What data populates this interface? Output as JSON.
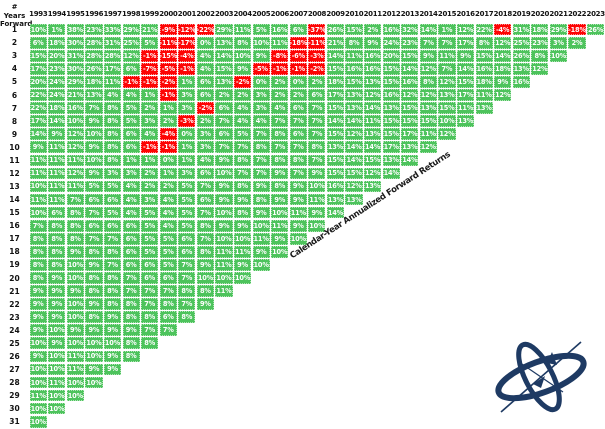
{
  "corner_label": {
    "line1": "# Years",
    "line2": "Forward"
  },
  "diagonal_label": "Calendar-Year Annualized Forward Returns",
  "logo_icon": "gyroscope-orbit-logo",
  "colors": {
    "positive_cell": "#4dc35c",
    "negative_cell": "#fd0404",
    "cell_text": "#ffffff",
    "header_text": "#111111",
    "logo_navy": "#1e3a63"
  },
  "chart_data": {
    "type": "heatmap",
    "title": "Calendar-Year Annualized Forward Returns",
    "unit": "percent, annualized",
    "x_axis": "start year",
    "y_axis": "# Years Forward",
    "color_rule": "value >= 0 green, value < 0 red",
    "columns": [
      1993,
      1994,
      1995,
      1996,
      1997,
      1998,
      1999,
      2000,
      2001,
      2002,
      2003,
      2004,
      2005,
      2006,
      2007,
      2008,
      2009,
      2010,
      2011,
      2012,
      2013,
      2014,
      2015,
      2016,
      2017,
      2018,
      2019,
      2020,
      2021,
      2022,
      2023
    ],
    "rows": [
      {
        "years_forward": 1,
        "values": [
          10,
          1,
          38,
          23,
          33,
          29,
          21,
          -9,
          -12,
          -22,
          29,
          11,
          5,
          16,
          6,
          -37,
          26,
          15,
          2,
          16,
          32,
          14,
          1,
          12,
          22,
          -4,
          31,
          18,
          29,
          -18,
          26
        ]
      },
      {
        "years_forward": 2,
        "values": [
          6,
          18,
          30,
          28,
          31,
          25,
          5,
          -11,
          -17,
          0,
          13,
          8,
          10,
          11,
          -18,
          -11,
          21,
          8,
          9,
          24,
          23,
          7,
          7,
          17,
          8,
          12,
          25,
          23,
          3,
          2
        ]
      },
      {
        "years_forward": 3,
        "values": [
          15,
          20,
          31,
          28,
          28,
          12,
          -1,
          -15,
          -4,
          4,
          14,
          10,
          9,
          -8,
          -6,
          -3,
          14,
          11,
          16,
          20,
          15,
          9,
          11,
          9,
          15,
          14,
          26,
          8,
          10
        ]
      },
      {
        "years_forward": 4,
        "values": [
          17,
          23,
          30,
          26,
          17,
          6,
          -7,
          -5,
          -1,
          4,
          15,
          9,
          -5,
          -1,
          -1,
          -2,
          15,
          16,
          16,
          15,
          14,
          12,
          7,
          14,
          16,
          18,
          13,
          12
        ]
      },
      {
        "years_forward": 5,
        "values": [
          20,
          24,
          29,
          18,
          11,
          -1,
          -1,
          -2,
          1,
          6,
          13,
          -2,
          0,
          2,
          0,
          2,
          18,
          15,
          13,
          15,
          16,
          8,
          12,
          15,
          18,
          9,
          16
        ]
      },
      {
        "years_forward": 6,
        "values": [
          22,
          24,
          21,
          13,
          4,
          4,
          1,
          -1,
          3,
          6,
          2,
          2,
          3,
          2,
          2,
          6,
          17,
          13,
          12,
          16,
          12,
          12,
          13,
          17,
          11,
          12
        ]
      },
      {
        "years_forward": 7,
        "values": [
          22,
          18,
          16,
          7,
          8,
          5,
          2,
          1,
          3,
          -2,
          6,
          4,
          3,
          4,
          6,
          7,
          15,
          13,
          14,
          13,
          15,
          13,
          15,
          11,
          13
        ]
      },
      {
        "years_forward": 8,
        "values": [
          17,
          14,
          10,
          9,
          8,
          5,
          3,
          2,
          -3,
          2,
          7,
          4,
          4,
          7,
          7,
          7,
          14,
          14,
          11,
          15,
          15,
          15,
          10,
          13
        ]
      },
      {
        "years_forward": 9,
        "values": [
          14,
          9,
          12,
          10,
          8,
          6,
          4,
          -4,
          0,
          3,
          6,
          5,
          7,
          8,
          6,
          7,
          15,
          12,
          13,
          15,
          17,
          11,
          12
        ]
      },
      {
        "years_forward": 10,
        "values": [
          9,
          11,
          12,
          9,
          8,
          6,
          -1,
          -1,
          1,
          3,
          7,
          7,
          8,
          7,
          7,
          8,
          13,
          14,
          14,
          17,
          13,
          12
        ]
      },
      {
        "years_forward": 11,
        "values": [
          11,
          11,
          11,
          10,
          8,
          1,
          1,
          0,
          1,
          4,
          9,
          8,
          7,
          8,
          8,
          7,
          15,
          14,
          15,
          13,
          14
        ]
      },
      {
        "years_forward": 12,
        "values": [
          11,
          11,
          12,
          9,
          3,
          3,
          2,
          1,
          3,
          6,
          10,
          7,
          7,
          9,
          7,
          9,
          15,
          15,
          12,
          14
        ]
      },
      {
        "years_forward": 13,
        "values": [
          10,
          11,
          11,
          5,
          5,
          4,
          2,
          2,
          5,
          7,
          9,
          8,
          9,
          8,
          9,
          10,
          16,
          12,
          13
        ]
      },
      {
        "years_forward": 14,
        "values": [
          11,
          11,
          7,
          6,
          6,
          4,
          3,
          4,
          5,
          6,
          9,
          9,
          8,
          9,
          9,
          11,
          13,
          13
        ]
      },
      {
        "years_forward": 15,
        "values": [
          10,
          6,
          8,
          7,
          5,
          4,
          5,
          4,
          5,
          7,
          10,
          8,
          9,
          10,
          11,
          9,
          14
        ]
      },
      {
        "years_forward": 16,
        "values": [
          7,
          8,
          8,
          6,
          6,
          6,
          5,
          4,
          5,
          8,
          9,
          9,
          10,
          11,
          9,
          10
        ]
      },
      {
        "years_forward": 17,
        "values": [
          8,
          8,
          8,
          7,
          7,
          6,
          5,
          5,
          6,
          7,
          10,
          10,
          11,
          9,
          10
        ]
      },
      {
        "years_forward": 18,
        "values": [
          8,
          8,
          9,
          8,
          8,
          6,
          5,
          5,
          6,
          8,
          11,
          11,
          9,
          10
        ]
      },
      {
        "years_forward": 19,
        "values": [
          8,
          8,
          10,
          9,
          7,
          6,
          6,
          5,
          7,
          9,
          11,
          9,
          10
        ]
      },
      {
        "years_forward": 20,
        "values": [
          8,
          9,
          10,
          8,
          8,
          7,
          6,
          6,
          7,
          10,
          10,
          10
        ]
      },
      {
        "years_forward": 21,
        "values": [
          9,
          9,
          9,
          8,
          8,
          7,
          7,
          7,
          8,
          8,
          11
        ]
      },
      {
        "years_forward": 22,
        "values": [
          9,
          9,
          10,
          9,
          8,
          8,
          7,
          8,
          7,
          9
        ]
      },
      {
        "years_forward": 23,
        "values": [
          9,
          9,
          10,
          8,
          9,
          8,
          8,
          6,
          8
        ]
      },
      {
        "years_forward": 24,
        "values": [
          9,
          10,
          9,
          9,
          9,
          9,
          7,
          7
        ]
      },
      {
        "years_forward": 25,
        "values": [
          10,
          9,
          10,
          10,
          10,
          8,
          8
        ]
      },
      {
        "years_forward": 26,
        "values": [
          9,
          10,
          11,
          10,
          9,
          8
        ]
      },
      {
        "years_forward": 27,
        "values": [
          10,
          10,
          11,
          9,
          9
        ]
      },
      {
        "years_forward": 28,
        "values": [
          10,
          11,
          10,
          10
        ]
      },
      {
        "years_forward": 29,
        "values": [
          11,
          10,
          10
        ]
      },
      {
        "years_forward": 30,
        "values": [
          10,
          10
        ]
      },
      {
        "years_forward": 31,
        "values": [
          10
        ]
      }
    ]
  }
}
